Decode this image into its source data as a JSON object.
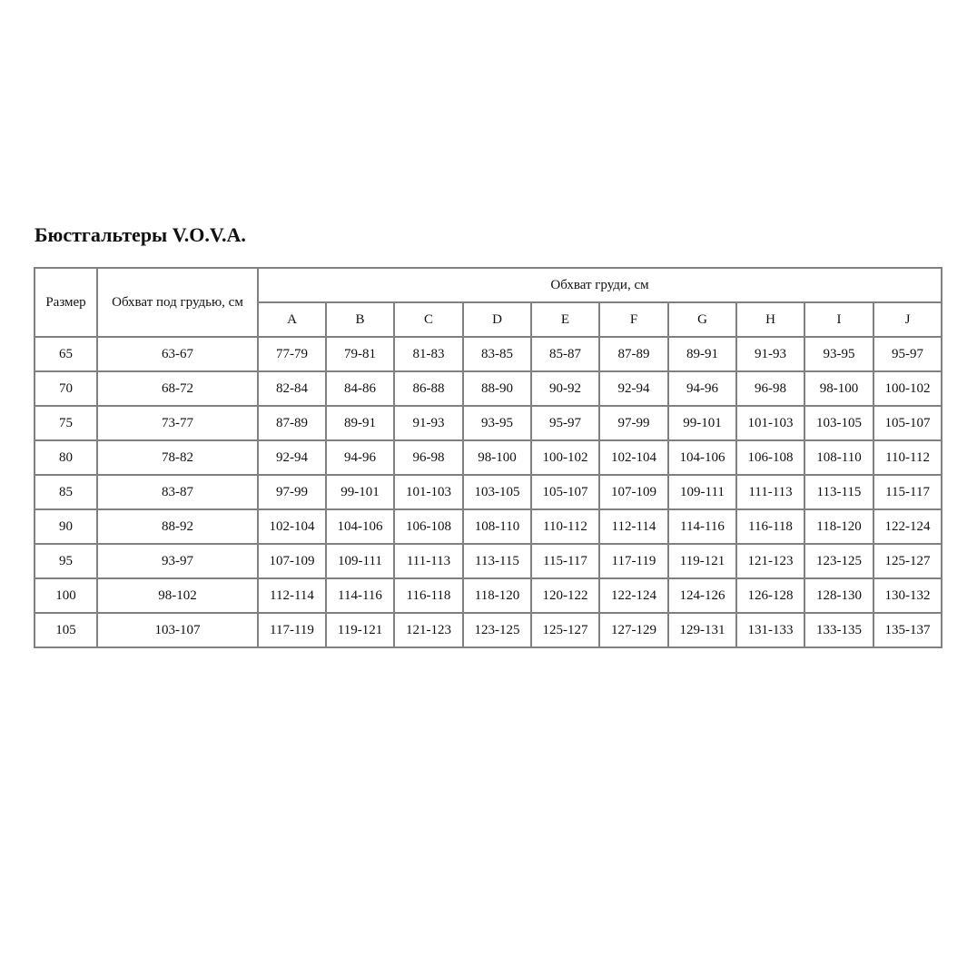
{
  "title": "Бюстгальтеры V.O.V.A.",
  "table": {
    "header_size": "Размер",
    "header_underbust": "Обхват под грудью, см",
    "header_bust": "Обхват груди, см",
    "cups": [
      "A",
      "B",
      "C",
      "D",
      "E",
      "F",
      "G",
      "H",
      "I",
      "J"
    ],
    "rows": [
      {
        "size": "65",
        "underbust": "63-67",
        "values": [
          "77-79",
          "79-81",
          "81-83",
          "83-85",
          "85-87",
          "87-89",
          "89-91",
          "91-93",
          "93-95",
          "95-97"
        ]
      },
      {
        "size": "70",
        "underbust": "68-72",
        "values": [
          "82-84",
          "84-86",
          "86-88",
          "88-90",
          "90-92",
          "92-94",
          "94-96",
          "96-98",
          "98-100",
          "100-102"
        ]
      },
      {
        "size": "75",
        "underbust": "73-77",
        "values": [
          "87-89",
          "89-91",
          "91-93",
          "93-95",
          "95-97",
          "97-99",
          "99-101",
          "101-103",
          "103-105",
          "105-107"
        ]
      },
      {
        "size": "80",
        "underbust": "78-82",
        "values": [
          "92-94",
          "94-96",
          "96-98",
          "98-100",
          "100-102",
          "102-104",
          "104-106",
          "106-108",
          "108-110",
          "110-112"
        ]
      },
      {
        "size": "85",
        "underbust": "83-87",
        "values": [
          "97-99",
          "99-101",
          "101-103",
          "103-105",
          "105-107",
          "107-109",
          "109-111",
          "111-113",
          "113-115",
          "115-117"
        ]
      },
      {
        "size": "90",
        "underbust": "88-92",
        "values": [
          "102-104",
          "104-106",
          "106-108",
          "108-110",
          "110-112",
          "112-114",
          "114-116",
          "116-118",
          "118-120",
          "122-124"
        ]
      },
      {
        "size": "95",
        "underbust": "93-97",
        "values": [
          "107-109",
          "109-111",
          "111-113",
          "113-115",
          "115-117",
          "117-119",
          "119-121",
          "121-123",
          "123-125",
          "125-127"
        ]
      },
      {
        "size": "100",
        "underbust": "98-102",
        "values": [
          "112-114",
          "114-116",
          "116-118",
          "118-120",
          "120-122",
          "122-124",
          "124-126",
          "126-128",
          "128-130",
          "130-132"
        ]
      },
      {
        "size": "105",
        "underbust": "103-107",
        "values": [
          "117-119",
          "119-121",
          "121-123",
          "123-125",
          "125-127",
          "127-129",
          "129-131",
          "131-133",
          "133-135",
          "135-137"
        ]
      }
    ]
  }
}
